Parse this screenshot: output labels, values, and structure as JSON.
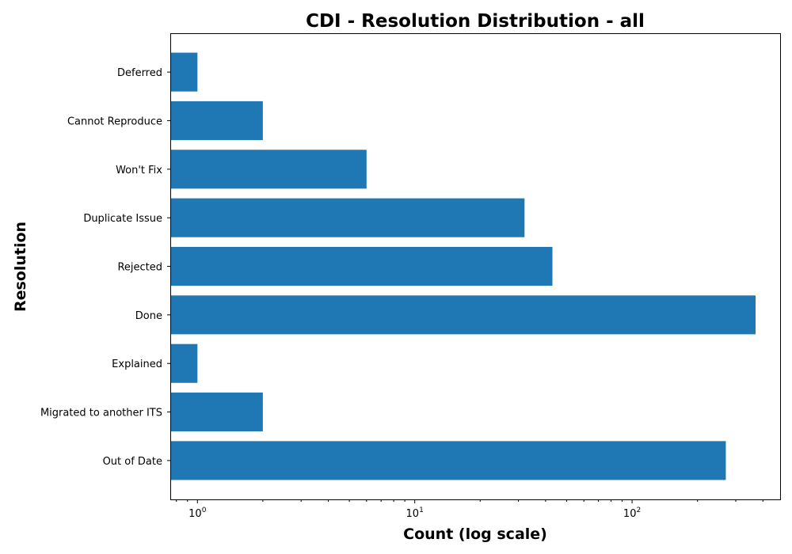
{
  "chart_data": {
    "type": "bar",
    "orientation": "horizontal",
    "title": "CDI - Resolution Distribution - all",
    "xlabel": "Count (log scale)",
    "ylabel": "Resolution",
    "x_scale": "log",
    "xlim": [
      0.75,
      480
    ],
    "x_ticks": [
      {
        "value": 1,
        "base": "10",
        "exp": "0"
      },
      {
        "value": 10,
        "base": "10",
        "exp": "1"
      },
      {
        "value": 100,
        "base": "10",
        "exp": "2"
      }
    ],
    "categories": [
      "Deferred",
      "Cannot Reproduce",
      "Won't Fix",
      "Duplicate Issue",
      "Rejected",
      "Done",
      "Explained",
      "Migrated to another ITS",
      "Out of Date"
    ],
    "values": [
      1,
      2,
      6,
      32,
      43,
      370,
      1,
      2,
      270
    ],
    "bar_color": "#1f77b4",
    "grid": false,
    "legend": "none"
  }
}
